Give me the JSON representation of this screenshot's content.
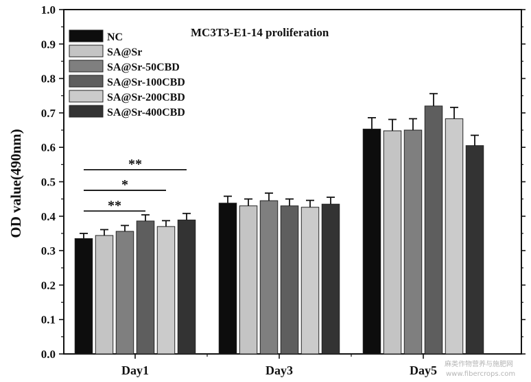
{
  "chart_data": {
    "type": "bar",
    "title": "MC3T3-E1-14 proliferation",
    "ylabel": "OD value(490nm)",
    "xlabel": "",
    "ylim": [
      0.0,
      1.0
    ],
    "yticks": [
      "0.0",
      "0.1",
      "0.2",
      "0.3",
      "0.4",
      "0.5",
      "0.6",
      "0.7",
      "0.8",
      "0.9",
      "1.0"
    ],
    "categories": [
      "Day1",
      "Day3",
      "Day5"
    ],
    "legend_position": "top-left",
    "grid": false,
    "series": [
      {
        "name": "NC",
        "color": "#0d0d0d",
        "values": [
          0.335,
          0.438,
          0.653
        ],
        "errors": [
          0.015,
          0.02,
          0.033
        ]
      },
      {
        "name": "SA@Sr",
        "color": "#c4c4c4",
        "values": [
          0.344,
          0.43,
          0.648
        ],
        "errors": [
          0.017,
          0.02,
          0.033
        ]
      },
      {
        "name": "SA@Sr-50CBD",
        "color": "#7f7f7f",
        "values": [
          0.356,
          0.445,
          0.65
        ],
        "errors": [
          0.017,
          0.022,
          0.033
        ]
      },
      {
        "name": "SA@Sr-100CBD",
        "color": "#5e5e5e",
        "values": [
          0.386,
          0.43,
          0.72
        ],
        "errors": [
          0.018,
          0.02,
          0.036
        ]
      },
      {
        "name": "SA@Sr-200CBD",
        "color": "#cbcbcb",
        "values": [
          0.37,
          0.426,
          0.683
        ],
        "errors": [
          0.017,
          0.02,
          0.033
        ]
      },
      {
        "name": "SA@Sr-400CBD",
        "color": "#333333",
        "values": [
          0.389,
          0.435,
          0.605
        ],
        "errors": [
          0.019,
          0.02,
          0.03
        ]
      }
    ],
    "annotations": [
      {
        "text": "**",
        "from_series": 0,
        "to_series": 5,
        "category": "Day1",
        "y": 0.535
      },
      {
        "text": "*",
        "from_series": 0,
        "to_series": 4,
        "category": "Day1",
        "y": 0.475
      },
      {
        "text": "**",
        "from_series": 0,
        "to_series": 3,
        "category": "Day1",
        "y": 0.415
      }
    ]
  },
  "watermark": {
    "line1": "麻类作物营养与施肥网",
    "line2": "www.fibercrops.com"
  }
}
